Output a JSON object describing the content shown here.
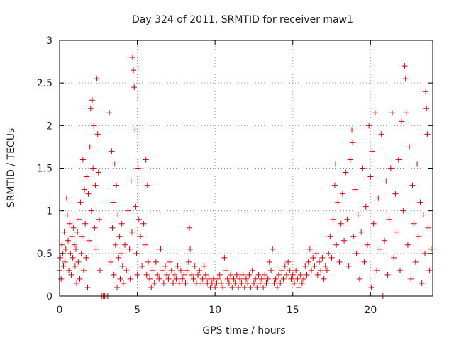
{
  "chart_data": {
    "type": "scatter",
    "title": "Day 324 of 2011, SRMTID for receiver maw1",
    "xlabel": "GPS time / hours",
    "ylabel": "SRMTID / TECUs",
    "xlim": [
      0,
      24
    ],
    "ylim": [
      0,
      3
    ],
    "xticks": [
      0,
      5,
      10,
      15,
      20
    ],
    "xtick_labels": [
      "0",
      "5",
      "10",
      "15",
      "20"
    ],
    "yticks": [
      0,
      0.5,
      1,
      1.5,
      2,
      2.5,
      3
    ],
    "ytick_labels": [
      "0",
      "0.5",
      "1",
      "1.5",
      "2",
      "2.5",
      "3"
    ],
    "grid": true,
    "marker": "+",
    "color": "#e00000",
    "series": [
      {
        "name": "SRMTID",
        "points": [
          [
            0.0,
            0.3
          ],
          [
            0.05,
            0.45
          ],
          [
            0.1,
            0.2
          ],
          [
            0.15,
            0.6
          ],
          [
            0.2,
            0.5
          ],
          [
            0.25,
            0.35
          ],
          [
            0.3,
            0.75
          ],
          [
            0.35,
            0.4
          ],
          [
            0.4,
            0.55
          ],
          [
            0.45,
            1.15
          ],
          [
            0.5,
            0.95
          ],
          [
            0.55,
            0.65
          ],
          [
            0.6,
            0.3
          ],
          [
            0.65,
            0.85
          ],
          [
            0.7,
            0.5
          ],
          [
            0.75,
            0.25
          ],
          [
            0.8,
            0.7
          ],
          [
            0.85,
            0.45
          ],
          [
            0.9,
            0.8
          ],
          [
            0.95,
            0.6
          ],
          [
            1.0,
            0.35
          ],
          [
            1.05,
            0.55
          ],
          [
            1.1,
            0.15
          ],
          [
            1.15,
            0.75
          ],
          [
            1.2,
            0.4
          ],
          [
            1.25,
            0.9
          ],
          [
            1.3,
            0.2
          ],
          [
            1.35,
            1.1
          ],
          [
            1.4,
            0.5
          ],
          [
            1.45,
            0.7
          ],
          [
            1.5,
            1.6
          ],
          [
            1.55,
            0.3
          ],
          [
            1.6,
            1.25
          ],
          [
            1.65,
            0.85
          ],
          [
            1.7,
            0.45
          ],
          [
            1.75,
            1.4
          ],
          [
            1.8,
            0.1
          ],
          [
            1.85,
            1.2
          ],
          [
            1.9,
            0.65
          ],
          [
            1.95,
            1.75
          ],
          [
            2.0,
            2.2
          ],
          [
            2.05,
            1.0
          ],
          [
            2.1,
            2.3
          ],
          [
            2.15,
            1.5
          ],
          [
            2.2,
            2.0
          ],
          [
            2.25,
            0.8
          ],
          [
            2.3,
            1.3
          ],
          [
            2.35,
            0.55
          ],
          [
            2.4,
            2.55
          ],
          [
            2.45,
            1.9
          ],
          [
            2.5,
            1.45
          ],
          [
            2.55,
            0.9
          ],
          [
            2.6,
            0.3
          ],
          [
            2.7,
            0.0
          ],
          [
            2.8,
            0.0
          ],
          [
            2.9,
            0.0
          ],
          [
            3.0,
            0.0
          ],
          [
            3.1,
            0.0
          ],
          [
            3.2,
            2.15
          ],
          [
            3.3,
            0.4
          ],
          [
            3.35,
            1.7
          ],
          [
            3.4,
            0.8
          ],
          [
            3.45,
            1.1
          ],
          [
            3.5,
            0.25
          ],
          [
            3.55,
            1.55
          ],
          [
            3.6,
            0.6
          ],
          [
            3.65,
            1.3
          ],
          [
            3.7,
            0.1
          ],
          [
            3.75,
            0.95
          ],
          [
            3.8,
            0.45
          ],
          [
            3.85,
            0.7
          ],
          [
            3.9,
            0.2
          ],
          [
            3.95,
            0.5
          ],
          [
            4.0,
            0.85
          ],
          [
            4.05,
            0.35
          ],
          [
            4.1,
            0.15
          ],
          [
            4.2,
            0.6
          ],
          [
            4.3,
            0.3
          ],
          [
            4.4,
            1.0
          ],
          [
            4.5,
            0.55
          ],
          [
            4.55,
            0.2
          ],
          [
            4.6,
            1.35
          ],
          [
            4.65,
            0.75
          ],
          [
            4.7,
            2.8
          ],
          [
            4.75,
            2.65
          ],
          [
            4.8,
            2.45
          ],
          [
            4.85,
            1.95
          ],
          [
            4.9,
            1.05
          ],
          [
            4.95,
            0.5
          ],
          [
            5.0,
            0.25
          ],
          [
            5.05,
            1.5
          ],
          [
            5.1,
            0.9
          ],
          [
            5.2,
            0.7
          ],
          [
            5.3,
            0.35
          ],
          [
            5.4,
            0.85
          ],
          [
            5.5,
            0.6
          ],
          [
            5.55,
            1.6
          ],
          [
            5.6,
            0.25
          ],
          [
            5.65,
            1.3
          ],
          [
            5.7,
            0.4
          ],
          [
            5.8,
            0.2
          ],
          [
            5.9,
            0.1
          ],
          [
            6.0,
            0.3
          ],
          [
            6.1,
            0.15
          ],
          [
            6.2,
            0.4
          ],
          [
            6.3,
            0.25
          ],
          [
            6.4,
            0.2
          ],
          [
            6.5,
            0.55
          ],
          [
            6.6,
            0.3
          ],
          [
            6.7,
            0.15
          ],
          [
            6.8,
            0.35
          ],
          [
            6.9,
            0.25
          ],
          [
            7.0,
            0.2
          ],
          [
            7.1,
            0.4
          ],
          [
            7.2,
            0.3
          ],
          [
            7.3,
            0.15
          ],
          [
            7.4,
            0.25
          ],
          [
            7.5,
            0.2
          ],
          [
            7.6,
            0.35
          ],
          [
            7.7,
            0.15
          ],
          [
            7.8,
            0.3
          ],
          [
            7.9,
            0.2
          ],
          [
            8.0,
            0.25
          ],
          [
            8.1,
            0.15
          ],
          [
            8.2,
            0.3
          ],
          [
            8.3,
            0.4
          ],
          [
            8.35,
            0.8
          ],
          [
            8.4,
            0.55
          ],
          [
            8.5,
            0.25
          ],
          [
            8.6,
            0.2
          ],
          [
            8.7,
            0.35
          ],
          [
            8.8,
            0.15
          ],
          [
            8.9,
            0.25
          ],
          [
            9.0,
            0.3
          ],
          [
            9.1,
            0.15
          ],
          [
            9.2,
            0.2
          ],
          [
            9.3,
            0.35
          ],
          [
            9.4,
            0.25
          ],
          [
            9.5,
            0.15
          ],
          [
            9.6,
            0.2
          ],
          [
            9.7,
            0.1
          ],
          [
            9.8,
            0.15
          ],
          [
            9.9,
            0.2
          ],
          [
            10.0,
            0.1
          ],
          [
            10.1,
            0.15
          ],
          [
            10.2,
            0.2
          ],
          [
            10.3,
            0.25
          ],
          [
            10.4,
            0.15
          ],
          [
            10.5,
            0.1
          ],
          [
            10.6,
            0.45
          ],
          [
            10.7,
            0.3
          ],
          [
            10.8,
            0.2
          ],
          [
            10.9,
            0.15
          ],
          [
            11.0,
            0.25
          ],
          [
            11.1,
            0.1
          ],
          [
            11.2,
            0.2
          ],
          [
            11.3,
            0.15
          ],
          [
            11.4,
            0.25
          ],
          [
            11.5,
            0.1
          ],
          [
            11.6,
            0.2
          ],
          [
            11.7,
            0.15
          ],
          [
            11.8,
            0.25
          ],
          [
            11.9,
            0.1
          ],
          [
            12.0,
            0.2
          ],
          [
            12.1,
            0.15
          ],
          [
            12.2,
            0.25
          ],
          [
            12.3,
            0.1
          ],
          [
            12.4,
            0.3
          ],
          [
            12.5,
            0.15
          ],
          [
            12.6,
            0.2
          ],
          [
            12.7,
            0.1
          ],
          [
            12.8,
            0.25
          ],
          [
            12.9,
            0.15
          ],
          [
            13.0,
            0.2
          ],
          [
            13.1,
            0.1
          ],
          [
            13.2,
            0.25
          ],
          [
            13.3,
            0.15
          ],
          [
            13.4,
            0.2
          ],
          [
            13.5,
            0.4
          ],
          [
            13.6,
            0.3
          ],
          [
            13.7,
            0.55
          ],
          [
            13.8,
            0.15
          ],
          [
            13.9,
            0.2
          ],
          [
            14.0,
            0.1
          ],
          [
            14.1,
            0.25
          ],
          [
            14.2,
            0.15
          ],
          [
            14.3,
            0.3
          ],
          [
            14.4,
            0.2
          ],
          [
            14.5,
            0.35
          ],
          [
            14.6,
            0.25
          ],
          [
            14.7,
            0.4
          ],
          [
            14.8,
            0.3
          ],
          [
            14.9,
            0.2
          ],
          [
            15.0,
            0.25
          ],
          [
            15.1,
            0.15
          ],
          [
            15.2,
            0.3
          ],
          [
            15.3,
            0.2
          ],
          [
            15.4,
            0.1
          ],
          [
            15.5,
            0.25
          ],
          [
            15.6,
            0.15
          ],
          [
            15.7,
            0.2
          ],
          [
            15.8,
            0.35
          ],
          [
            15.9,
            0.25
          ],
          [
            16.0,
            0.4
          ],
          [
            16.1,
            0.55
          ],
          [
            16.2,
            0.3
          ],
          [
            16.3,
            0.45
          ],
          [
            16.4,
            0.35
          ],
          [
            16.5,
            0.5
          ],
          [
            16.6,
            0.25
          ],
          [
            16.7,
            0.4
          ],
          [
            16.8,
            0.3
          ],
          [
            16.9,
            0.45
          ],
          [
            17.0,
            0.2
          ],
          [
            17.1,
            0.35
          ],
          [
            17.2,
            0.3
          ],
          [
            17.3,
            0.5
          ],
          [
            17.4,
            0.7
          ],
          [
            17.5,
            0.45
          ],
          [
            17.6,
            0.9
          ],
          [
            17.7,
            1.3
          ],
          [
            17.75,
            1.55
          ],
          [
            17.8,
            0.6
          ],
          [
            17.9,
            1.1
          ],
          [
            18.0,
            0.4
          ],
          [
            18.1,
            0.85
          ],
          [
            18.2,
            1.2
          ],
          [
            18.3,
            0.65
          ],
          [
            18.4,
            1.45
          ],
          [
            18.5,
            0.9
          ],
          [
            18.6,
            0.35
          ],
          [
            18.7,
            1.6
          ],
          [
            18.8,
            1.95
          ],
          [
            18.85,
            1.8
          ],
          [
            18.9,
            0.7
          ],
          [
            19.0,
            1.25
          ],
          [
            19.1,
            0.5
          ],
          [
            19.2,
            0.95
          ],
          [
            19.3,
            0.2
          ],
          [
            19.4,
            0.75
          ],
          [
            19.5,
            1.5
          ],
          [
            19.6,
            0.4
          ],
          [
            19.7,
            1.05
          ],
          [
            19.8,
            0.6
          ],
          [
            19.9,
            2.0
          ],
          [
            20.0,
            1.4
          ],
          [
            20.05,
            0.1
          ],
          [
            20.1,
            1.7
          ],
          [
            20.2,
            0.85
          ],
          [
            20.3,
            2.15
          ],
          [
            20.4,
            0.3
          ],
          [
            20.5,
            1.15
          ],
          [
            20.6,
            0.55
          ],
          [
            20.7,
            1.9
          ],
          [
            20.8,
            0.0
          ],
          [
            20.9,
            0.65
          ],
          [
            21.0,
            1.35
          ],
          [
            21.1,
            0.25
          ],
          [
            21.2,
            0.9
          ],
          [
            21.3,
            1.5
          ],
          [
            21.4,
            2.15
          ],
          [
            21.5,
            0.45
          ],
          [
            21.6,
            1.2
          ],
          [
            21.7,
            0.75
          ],
          [
            21.8,
            1.6
          ],
          [
            21.9,
            0.3
          ],
          [
            22.0,
            2.05
          ],
          [
            22.1,
            1.0
          ],
          [
            22.2,
            2.7
          ],
          [
            22.25,
            2.55
          ],
          [
            22.3,
            2.15
          ],
          [
            22.4,
            0.6
          ],
          [
            22.5,
            1.75
          ],
          [
            22.6,
            0.2
          ],
          [
            22.7,
            1.3
          ],
          [
            22.8,
            0.85
          ],
          [
            22.9,
            0.4
          ],
          [
            23.0,
            1.55
          ],
          [
            23.1,
            0.7
          ],
          [
            23.2,
            1.1
          ],
          [
            23.3,
            0.15
          ],
          [
            23.4,
            0.95
          ],
          [
            23.5,
            0.5
          ],
          [
            23.55,
            2.4
          ],
          [
            23.6,
            2.2
          ],
          [
            23.65,
            1.9
          ],
          [
            23.7,
            0.8
          ],
          [
            23.8,
            0.3
          ],
          [
            23.9,
            0.55
          ]
        ]
      }
    ]
  }
}
